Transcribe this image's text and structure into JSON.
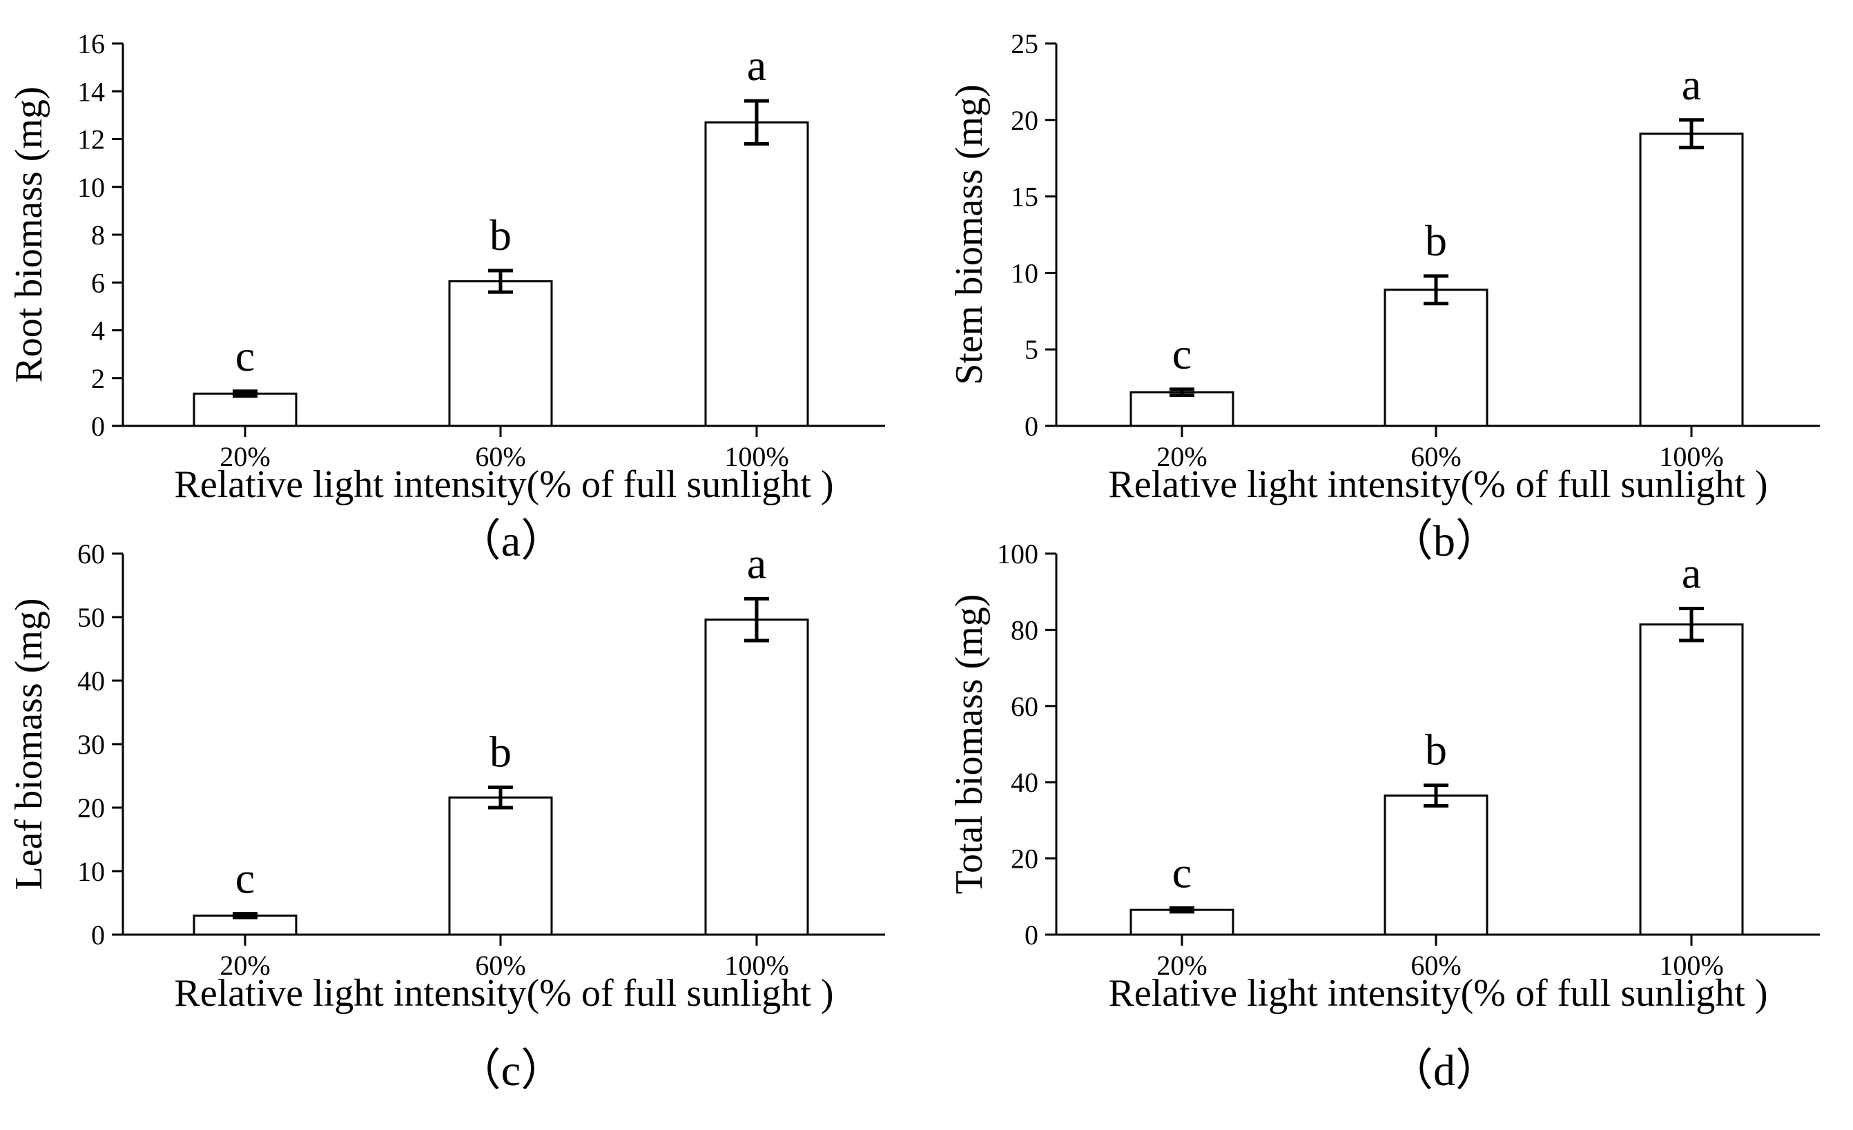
{
  "chart_data": [
    {
      "type": "bar",
      "panel_label": "（a）",
      "categories": [
        "20%",
        "60%",
        "100%"
      ],
      "values": [
        1.35,
        6.05,
        12.7
      ],
      "errors": [
        0.1,
        0.45,
        0.9
      ],
      "significance": [
        "c",
        "b",
        "a"
      ],
      "ylabel": "Root biomass (mg)",
      "xlabel": "Relative light intensity(% of full sunlight )",
      "ylim": [
        0,
        16
      ],
      "yticks": [
        0,
        2,
        4,
        6,
        8,
        10,
        12,
        14,
        16
      ],
      "grid": false
    },
    {
      "type": "bar",
      "panel_label": "（b）",
      "categories": [
        "20%",
        "60%",
        "100%"
      ],
      "values": [
        2.2,
        8.9,
        19.1
      ],
      "errors": [
        0.2,
        0.9,
        0.9
      ],
      "significance": [
        "c",
        "b",
        "a"
      ],
      "ylabel": "Stem biomass (mg)",
      "xlabel": "Relative light intensity(% of full sunlight )",
      "ylim": [
        0,
        25
      ],
      "yticks": [
        0,
        5,
        10,
        15,
        20,
        25
      ],
      "grid": false
    },
    {
      "type": "bar",
      "panel_label": "（c）",
      "categories": [
        "20%",
        "60%",
        "100%"
      ],
      "values": [
        3.0,
        21.6,
        49.6
      ],
      "errors": [
        0.3,
        1.6,
        3.3
      ],
      "significance": [
        "c",
        "b",
        "a"
      ],
      "ylabel": "Leaf biomass (mg)",
      "xlabel": "Relative light intensity(% of full sunlight )",
      "ylim": [
        0,
        60
      ],
      "yticks": [
        0,
        10,
        20,
        30,
        40,
        50,
        60
      ],
      "grid": false
    },
    {
      "type": "bar",
      "panel_label": "（d）",
      "categories": [
        "20%",
        "60%",
        "100%"
      ],
      "values": [
        6.5,
        36.5,
        81.4
      ],
      "errors": [
        0.5,
        2.7,
        4.2
      ],
      "significance": [
        "c",
        "b",
        "a"
      ],
      "ylabel": "Total biomass (mg)",
      "xlabel": "Relative light intensity(% of full sunlight )",
      "ylim": [
        0,
        100
      ],
      "yticks": [
        0,
        20,
        40,
        60,
        80,
        100
      ],
      "grid": false
    }
  ]
}
